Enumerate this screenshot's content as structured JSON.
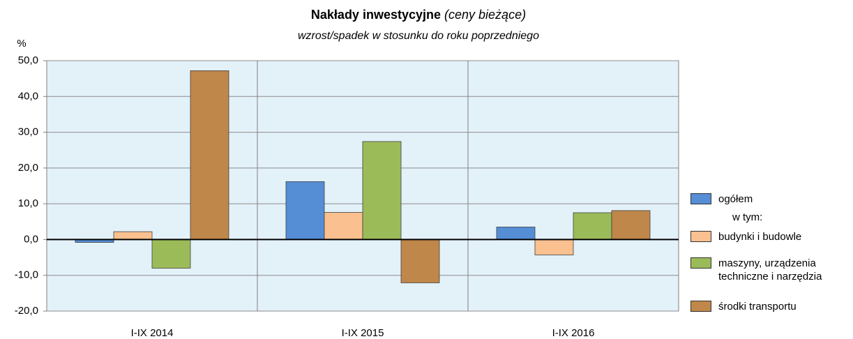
{
  "chart_data": {
    "type": "bar",
    "title": "Nakłady inwestycyjne",
    "title_note": "(ceny bieżące)",
    "subtitle": "wzrost/spadek w stosunku do roku poprzedniego",
    "y_label": "%",
    "legend_note": "w tym:",
    "categories": [
      "I-IX 2014",
      "I-IX 2015",
      "I-IX 2016"
    ],
    "series": [
      {
        "name": "ogółem",
        "color": "#558ed5",
        "values": [
          -0.8,
          16.2,
          3.5
        ]
      },
      {
        "name": "budynki i budowle",
        "color": "#fac090",
        "values": [
          2.2,
          7.6,
          -4.3
        ]
      },
      {
        "name": "maszyny, urządzenia techniczne i narzędzia",
        "color": "#9bbb59",
        "values": [
          -8.0,
          27.4,
          7.5
        ]
      },
      {
        "name": "środki transportu",
        "color": "#c0874a",
        "values": [
          47.2,
          -12.1,
          8.1
        ]
      }
    ],
    "ylim": [
      -20,
      50
    ],
    "yticks": [
      {
        "value": -20,
        "label": "-20,0"
      },
      {
        "value": -10,
        "label": "-10,0"
      },
      {
        "value": 0,
        "label": "0,0"
      },
      {
        "value": 10,
        "label": "10,0"
      },
      {
        "value": 20,
        "label": "20,0"
      },
      {
        "value": 30,
        "label": "30,0"
      },
      {
        "value": 40,
        "label": "40,0"
      },
      {
        "value": 50,
        "label": "50,0"
      }
    ],
    "grid": true,
    "legend": "right"
  }
}
